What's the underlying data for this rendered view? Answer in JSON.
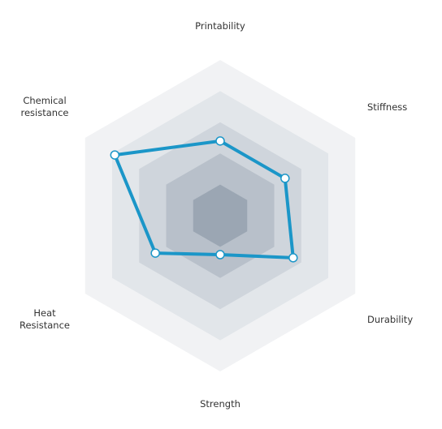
{
  "chart_data": {
    "type": "radar",
    "axes": [
      {
        "label_lines": [
          "Printability"
        ]
      },
      {
        "label_lines": [
          "Stiffness"
        ]
      },
      {
        "label_lines": [
          "Durability"
        ]
      },
      {
        "label_lines": [
          "Strength"
        ]
      },
      {
        "label_lines": [
          "Heat",
          "Resistance"
        ]
      },
      {
        "label_lines": [
          "Chemical",
          "resistance"
        ]
      }
    ],
    "levels": 5,
    "range": [
      0,
      5
    ],
    "series": [
      {
        "values": [
          2.4,
          2.4,
          2.7,
          1.25,
          2.4,
          3.9
        ]
      }
    ],
    "colors": {
      "rings": [
        "#f1f2f4",
        "#e2e6ea",
        "#cfd5dc",
        "#b8c0ca",
        "#9ba6b3"
      ],
      "series": "#1b96c8",
      "marker_fill": "#ffffff"
    }
  }
}
